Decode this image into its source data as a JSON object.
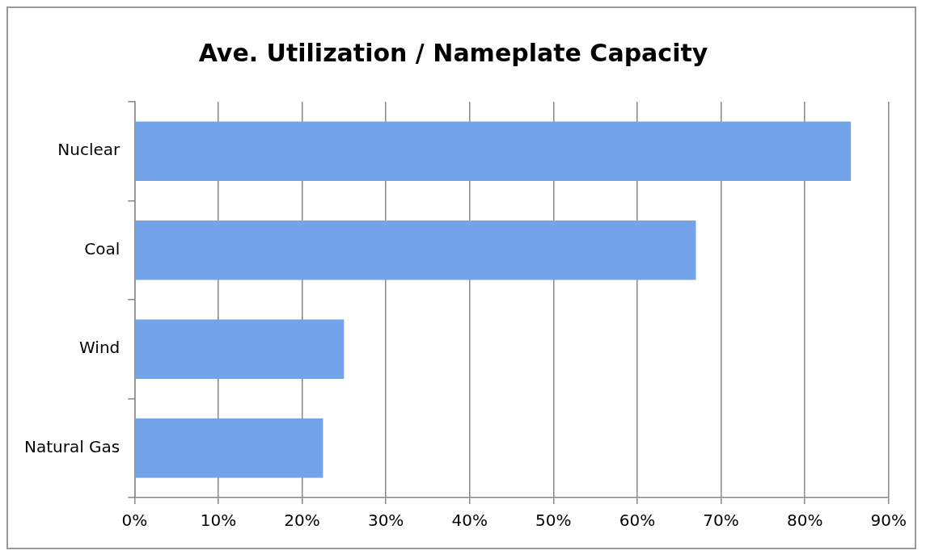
{
  "chart_data": {
    "type": "bar",
    "orientation": "horizontal",
    "title": "Ave. Utilization / Nameplate Capacity",
    "categories": [
      "Nuclear",
      "Coal",
      "Wind",
      "Natural Gas"
    ],
    "values": [
      85.5,
      67,
      25,
      22.5
    ],
    "color": "#73a3e8",
    "xlim": [
      0,
      90
    ],
    "xticks": [
      {
        "value": 0,
        "label": "0%"
      },
      {
        "value": 10,
        "label": "10%"
      },
      {
        "value": 20,
        "label": "20%"
      },
      {
        "value": 30,
        "label": "30%"
      },
      {
        "value": 40,
        "label": "40%"
      },
      {
        "value": 50,
        "label": "50%"
      },
      {
        "value": 60,
        "label": "60%"
      },
      {
        "value": 70,
        "label": "70%"
      },
      {
        "value": 80,
        "label": "80%"
      },
      {
        "value": 90,
        "label": "90%"
      }
    ],
    "grid": "x",
    "legend": false
  }
}
